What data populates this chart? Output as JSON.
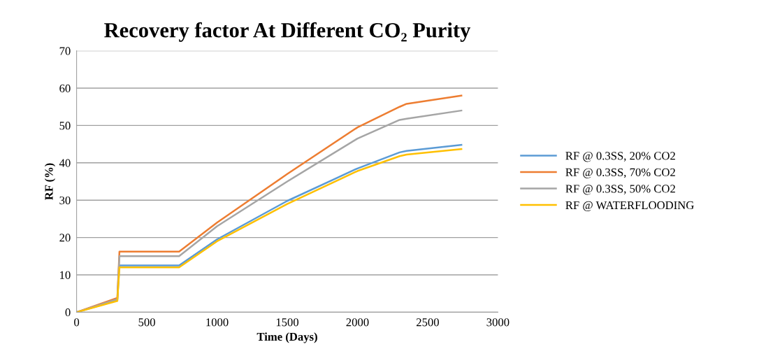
{
  "chart_data": {
    "type": "line",
    "title": "Recovery factor At Different CO₂ Purity",
    "xlabel": "Time (Days)",
    "ylabel": "RF (%)",
    "x": [
      0,
      290,
      305,
      730,
      1000,
      1500,
      2000,
      2300,
      2350,
      2740
    ],
    "series": [
      {
        "name": "RF @ 0.3SS, 20% CO2",
        "color": "#5b9bd5",
        "values": [
          0,
          3.2,
          12.5,
          12.5,
          19.5,
          29.8,
          38.5,
          42.8,
          43.2,
          44.8
        ]
      },
      {
        "name": "RF @ 0.3SS, 70% CO2",
        "color": "#ed7d31",
        "values": [
          0,
          3.8,
          16.2,
          16.2,
          24,
          37,
          49.5,
          55,
          55.8,
          58
        ]
      },
      {
        "name": "RF @ 0.3SS, 50% CO2",
        "color": "#a5a5a5",
        "values": [
          0,
          3.5,
          15,
          15,
          23,
          35,
          46.5,
          51.5,
          51.8,
          54
        ]
      },
      {
        "name": "RF @ WATERFLOODING",
        "color": "#ffc000",
        "values": [
          0,
          3,
          12,
          12,
          19,
          29,
          37.8,
          41.8,
          42.2,
          43.7
        ]
      }
    ],
    "xlim": [
      0,
      3000
    ],
    "xticks": [
      0,
      500,
      1000,
      1500,
      2000,
      2500,
      3000
    ],
    "ylim": [
      0,
      70
    ],
    "yticks": [
      0,
      10,
      20,
      30,
      40,
      50,
      60,
      70
    ],
    "grid": "y",
    "legend": "right",
    "marker": "none",
    "line_style": "solid"
  }
}
